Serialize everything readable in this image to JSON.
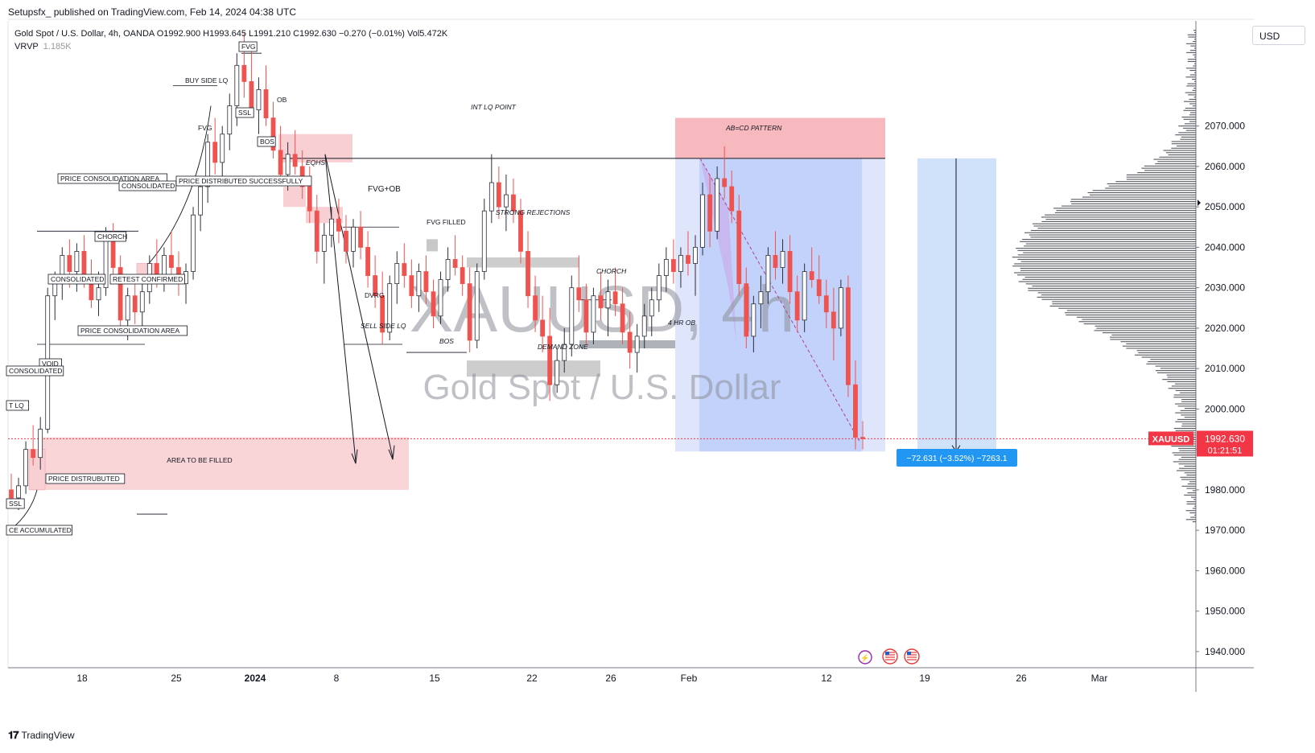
{
  "header": {
    "published": "Setupsfx_ published on TradingView.com, Feb 14, 2024 04:38 UTC"
  },
  "legend": {
    "line1": "Gold Spot / U.S. Dollar, 4h, OANDA  O1992.900  H1993.645  L1991.210  C1992.630  −0.270 (−0.01%)  Vol5.472K",
    "vrvp_label": "VRVP",
    "vrvp_value": "1.185K"
  },
  "currency_button": "USD",
  "watermark": {
    "symbol": "XAUUSD, 4h",
    "name": "Gold Spot / U.S. Dollar"
  },
  "price_tag": {
    "symbol": "XAUUSD",
    "price": "1992.630",
    "countdown": "01:21:51",
    "value": 1992.63
  },
  "measure_label": "−72.631 (−3.52%) −7263.1",
  "footer": {
    "brand": "TradingView"
  },
  "colors": {
    "bear": "#ef5350",
    "bull": "#787b86",
    "candle_dark": "#2a2e39",
    "pink_zone": "#f8d0d4",
    "blue_zone": "#c8d8fb",
    "tag_red": "#f23645",
    "measure_blue": "#2196f3"
  },
  "annotations": {
    "buy_side_lq": "BUY SIDE LQ",
    "fvg_top": "FVG",
    "fvg_left": "FVG",
    "ssl_top": "SSL",
    "bos_top": "BOS",
    "ob": "OB",
    "int_lq_point": "INT LQ POINT",
    "eqhs": "EQHS",
    "fvg_ob": "FVG+OB",
    "fvg_filled": "FVG FILLED",
    "strong_rejections": "STRONG REJECTIONS",
    "price_consolidation_area_top": "PRICE CONSOLIDATION AREA",
    "consolidated_top": "CONSOLIDATED",
    "price_distributed_successfully": "PRICE DISTRIBUTED SUCCESSFULLY",
    "chorch_left": "CHORCH",
    "consolidated_mid": "CONSOLIDATED",
    "retest_confirmed": "RETEST CONFIRMED",
    "dvrg": "DVRG",
    "sell_side_lq": "SELL SIDE LQ",
    "bos_mid": "BOS",
    "demand_zone": "DEMAND ZONE",
    "chorch_right": "CHORCH",
    "four_hr_ob": "4 HR OB",
    "ab_cd": "AB=CD PATTERN",
    "price_consolidation_area_low": "PRICE CONSOLIDATION AREA",
    "void": "VOID",
    "consolidated_low": "CONSOLIDATED",
    "lq_left": "T LQ",
    "area_to_be_filled": "AREA TO BE FILLED",
    "price_distrubuted": "PRICE DISTRUBUTED",
    "ssl_low": "SSL",
    "accumulated": "CE ACCUMULATED"
  },
  "chart_data": {
    "type": "candlestick",
    "title": "Gold Spot / U.S. Dollar",
    "symbol": "XAUUSD",
    "timeframe": "4h",
    "exchange": "OANDA",
    "ylabel": "USD",
    "ylim": [
      1936,
      2096
    ],
    "y_ticks": [
      1940,
      1950,
      1960,
      1970,
      1980,
      1990,
      2000,
      2010,
      2020,
      2030,
      2040,
      2050,
      2060,
      2070
    ],
    "y_tick_labels": [
      "1940.000",
      "1950.000",
      "1960.000",
      "1970.000",
      "1980.000",
      "1990.000",
      "2000.000",
      "2010.000",
      "2020.000",
      "2030.000",
      "2040.000",
      "2050.000",
      "2060.000",
      "2070.000"
    ],
    "x_tick_labels": [
      "18",
      "25",
      "2024",
      "8",
      "15",
      "22",
      "26",
      "Feb",
      "12",
      "19",
      "26",
      "Mar"
    ],
    "x_tick_dates": [
      "2023-12-18",
      "2023-12-25",
      "2024-01-01",
      "2024-01-08",
      "2024-01-15",
      "2024-01-22",
      "2024-01-26",
      "2024-02-01",
      "2024-02-12",
      "2024-02-19",
      "2024-02-26",
      "2024-03-01"
    ],
    "ohlc_last": {
      "open": 1992.9,
      "high": 1993.645,
      "low": 1991.21,
      "close": 1992.63,
      "change": -0.27,
      "change_pct": -0.01,
      "volume": "5.472K"
    },
    "zones": [
      {
        "name": "area-to-be-filled",
        "low": 1980,
        "high": 1993
      },
      {
        "name": "supply-ob-right",
        "low": 2062,
        "high": 2072
      },
      {
        "name": "short-position",
        "low": 1990,
        "high": 2062
      },
      {
        "name": "projection",
        "low": 1989,
        "high": 2062
      }
    ],
    "levels": [
      {
        "name": "int-lq-point",
        "value": 2062
      },
      {
        "name": "current-price",
        "value": 1992.63
      }
    ],
    "volume_profile": {
      "label": "VRVP",
      "value": "1.185K",
      "poc": 2035
    },
    "measurement": {
      "change": -72.631,
      "change_pct": -3.52,
      "ticks": -7263.1
    },
    "candles": [
      [
        1980,
        1984,
        1976,
        1978
      ],
      [
        1978,
        1983,
        1975,
        1981
      ],
      [
        1981,
        1992,
        1979,
        1990
      ],
      [
        1990,
        1996,
        1986,
        1988
      ],
      [
        1988,
        1998,
        1985,
        1995
      ],
      [
        1995,
        2030,
        1994,
        2028
      ],
      [
        2028,
        2034,
        2022,
        2031
      ],
      [
        2031,
        2040,
        2027,
        2038
      ],
      [
        2038,
        2042,
        2030,
        2034
      ],
      [
        2034,
        2041,
        2029,
        2039
      ],
      [
        2039,
        2043,
        2030,
        2032
      ],
      [
        2032,
        2037,
        2025,
        2027
      ],
      [
        2027,
        2034,
        2023,
        2030
      ],
      [
        2030,
        2045,
        2028,
        2043
      ],
      [
        2043,
        2046,
        2033,
        2035
      ],
      [
        2035,
        2038,
        2020,
        2022
      ],
      [
        2022,
        2030,
        2017,
        2028
      ],
      [
        2028,
        2033,
        2021,
        2024
      ],
      [
        2024,
        2031,
        2019,
        2029
      ],
      [
        2029,
        2038,
        2026,
        2036
      ],
      [
        2036,
        2042,
        2030,
        2033
      ],
      [
        2033,
        2040,
        2029,
        2038
      ],
      [
        2038,
        2044,
        2033,
        2035
      ],
      [
        2035,
        2039,
        2028,
        2031
      ],
      [
        2031,
        2036,
        2026,
        2034
      ],
      [
        2034,
        2050,
        2032,
        2048
      ],
      [
        2048,
        2057,
        2044,
        2055
      ],
      [
        2055,
        2068,
        2051,
        2066
      ],
      [
        2066,
        2072,
        2058,
        2061
      ],
      [
        2061,
        2070,
        2056,
        2068
      ],
      [
        2068,
        2078,
        2064,
        2075
      ],
      [
        2075,
        2088,
        2070,
        2085
      ],
      [
        2085,
        2093,
        2077,
        2081
      ],
      [
        2081,
        2090,
        2072,
        2074
      ],
      [
        2074,
        2082,
        2068,
        2079
      ],
      [
        2079,
        2085,
        2070,
        2072
      ],
      [
        2072,
        2076,
        2062,
        2064
      ],
      [
        2064,
        2070,
        2056,
        2058
      ],
      [
        2058,
        2066,
        2054,
        2063
      ],
      [
        2063,
        2069,
        2058,
        2060
      ],
      [
        2060,
        2064,
        2052,
        2055
      ],
      [
        2055,
        2060,
        2046,
        2049
      ],
      [
        2049,
        2053,
        2036,
        2039
      ],
      [
        2039,
        2046,
        2031,
        2043
      ],
      [
        2043,
        2050,
        2040,
        2047
      ],
      [
        2047,
        2052,
        2041,
        2044
      ],
      [
        2044,
        2048,
        2036,
        2039
      ],
      [
        2039,
        2047,
        2035,
        2045
      ],
      [
        2045,
        2049,
        2037,
        2040
      ],
      [
        2040,
        2044,
        2030,
        2033
      ],
      [
        2033,
        2038,
        2025,
        2028
      ],
      [
        2028,
        2034,
        2016,
        2019
      ],
      [
        2019,
        2033,
        2017,
        2031
      ],
      [
        2031,
        2039,
        2026,
        2036
      ],
      [
        2036,
        2041,
        2030,
        2033
      ],
      [
        2033,
        2037,
        2025,
        2028
      ],
      [
        2028,
        2036,
        2024,
        2034
      ],
      [
        2034,
        2038,
        2026,
        2029
      ],
      [
        2029,
        2032,
        2020,
        2023
      ],
      [
        2023,
        2034,
        2021,
        2032
      ],
      [
        2032,
        2040,
        2029,
        2037
      ],
      [
        2037,
        2043,
        2033,
        2035
      ],
      [
        2035,
        2038,
        2028,
        2031
      ],
      [
        2031,
        2035,
        2014,
        2017
      ],
      [
        2017,
        2036,
        2015,
        2034
      ],
      [
        2034,
        2052,
        2032,
        2049
      ],
      [
        2049,
        2063,
        2046,
        2056
      ],
      [
        2056,
        2060,
        2047,
        2050
      ],
      [
        2050,
        2058,
        2044,
        2053
      ],
      [
        2053,
        2057,
        2046,
        2049
      ],
      [
        2049,
        2052,
        2036,
        2039
      ],
      [
        2039,
        2044,
        2025,
        2028
      ],
      [
        2028,
        2033,
        2019,
        2022
      ],
      [
        2022,
        2028,
        2014,
        2018
      ],
      [
        2018,
        2025,
        2002,
        2006
      ],
      [
        2006,
        2015,
        2004,
        2012
      ],
      [
        2012,
        2020,
        2009,
        2016
      ],
      [
        2016,
        2033,
        2013,
        2030
      ],
      [
        2030,
        2038,
        2024,
        2027
      ],
      [
        2027,
        2031,
        2016,
        2019
      ],
      [
        2019,
        2030,
        2016,
        2028
      ],
      [
        2028,
        2034,
        2022,
        2025
      ],
      [
        2025,
        2032,
        2018,
        2029
      ],
      [
        2029,
        2035,
        2023,
        2026
      ],
      [
        2026,
        2030,
        2016,
        2019
      ],
      [
        2019,
        2024,
        2010,
        2014
      ],
      [
        2014,
        2021,
        2009,
        2018
      ],
      [
        2018,
        2026,
        2015,
        2023
      ],
      [
        2023,
        2030,
        2018,
        2027
      ],
      [
        2027,
        2036,
        2024,
        2033
      ],
      [
        2033,
        2040,
        2029,
        2037
      ],
      [
        2037,
        2042,
        2031,
        2034
      ],
      [
        2034,
        2040,
        2030,
        2038
      ],
      [
        2038,
        2044,
        2033,
        2036
      ],
      [
        2036,
        2043,
        2028,
        2040
      ],
      [
        2040,
        2056,
        2038,
        2053
      ],
      [
        2053,
        2058,
        2040,
        2044
      ],
      [
        2044,
        2060,
        2042,
        2057
      ],
      [
        2057,
        2065,
        2052,
        2055
      ],
      [
        2055,
        2059,
        2046,
        2049
      ],
      [
        2049,
        2053,
        2028,
        2031
      ],
      [
        2031,
        2035,
        2015,
        2018
      ],
      [
        2018,
        2028,
        2014,
        2026
      ],
      [
        2026,
        2033,
        2020,
        2029
      ],
      [
        2029,
        2040,
        2026,
        2038
      ],
      [
        2038,
        2044,
        2032,
        2035
      ],
      [
        2035,
        2042,
        2031,
        2039
      ],
      [
        2039,
        2043,
        2026,
        2029
      ],
      [
        2029,
        2033,
        2019,
        2022
      ],
      [
        2022,
        2036,
        2019,
        2034
      ],
      [
        2034,
        2040,
        2030,
        2032
      ],
      [
        2032,
        2038,
        2026,
        2028
      ],
      [
        2028,
        2032,
        2020,
        2024
      ],
      [
        2024,
        2030,
        2012,
        2020
      ],
      [
        2020,
        2032,
        2018,
        2030
      ],
      [
        2030,
        2033,
        2003,
        2006
      ],
      [
        2006,
        2012,
        1990,
        1993
      ],
      [
        1993,
        1997,
        1990,
        1992.63
      ]
    ]
  }
}
